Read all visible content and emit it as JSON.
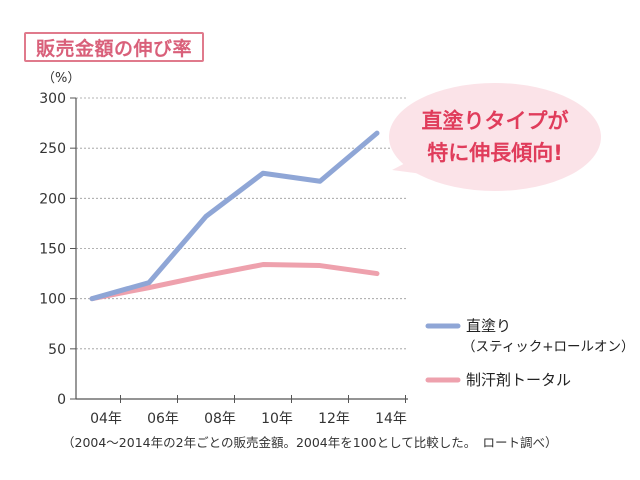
{
  "title": "販売金額の伸び率",
  "note": "（2004～2014年の2年ごとの販売金額。2004年を100として比較した。　ロート調べ）",
  "callout": {
    "line1": "直塗りタイプが",
    "line2": "特に伸長傾向!"
  },
  "colors": {
    "series_a": "#8fa6d6",
    "series_b": "#eea1ad",
    "callout_bg": "#fbe3e8",
    "callout_text": "#e03c5b"
  },
  "chart_data": {
    "type": "line",
    "categories": [
      "04年",
      "06年",
      "08年",
      "10年",
      "12年",
      "14年"
    ],
    "ylim": [
      0,
      300
    ],
    "yticks": [
      "0",
      "50",
      "100",
      "150",
      "200",
      "250",
      "300"
    ],
    "yunit": "（%）",
    "legend_position": "right",
    "grid": true,
    "series": [
      {
        "name": "直塗り",
        "sub": "（スティック+ロールオン）",
        "values": [
          100,
          116,
          182,
          225,
          217,
          265
        ]
      },
      {
        "name": "制汗剤トータル",
        "sub": "",
        "values": [
          100,
          111,
          123,
          134,
          133,
          125
        ]
      }
    ]
  }
}
